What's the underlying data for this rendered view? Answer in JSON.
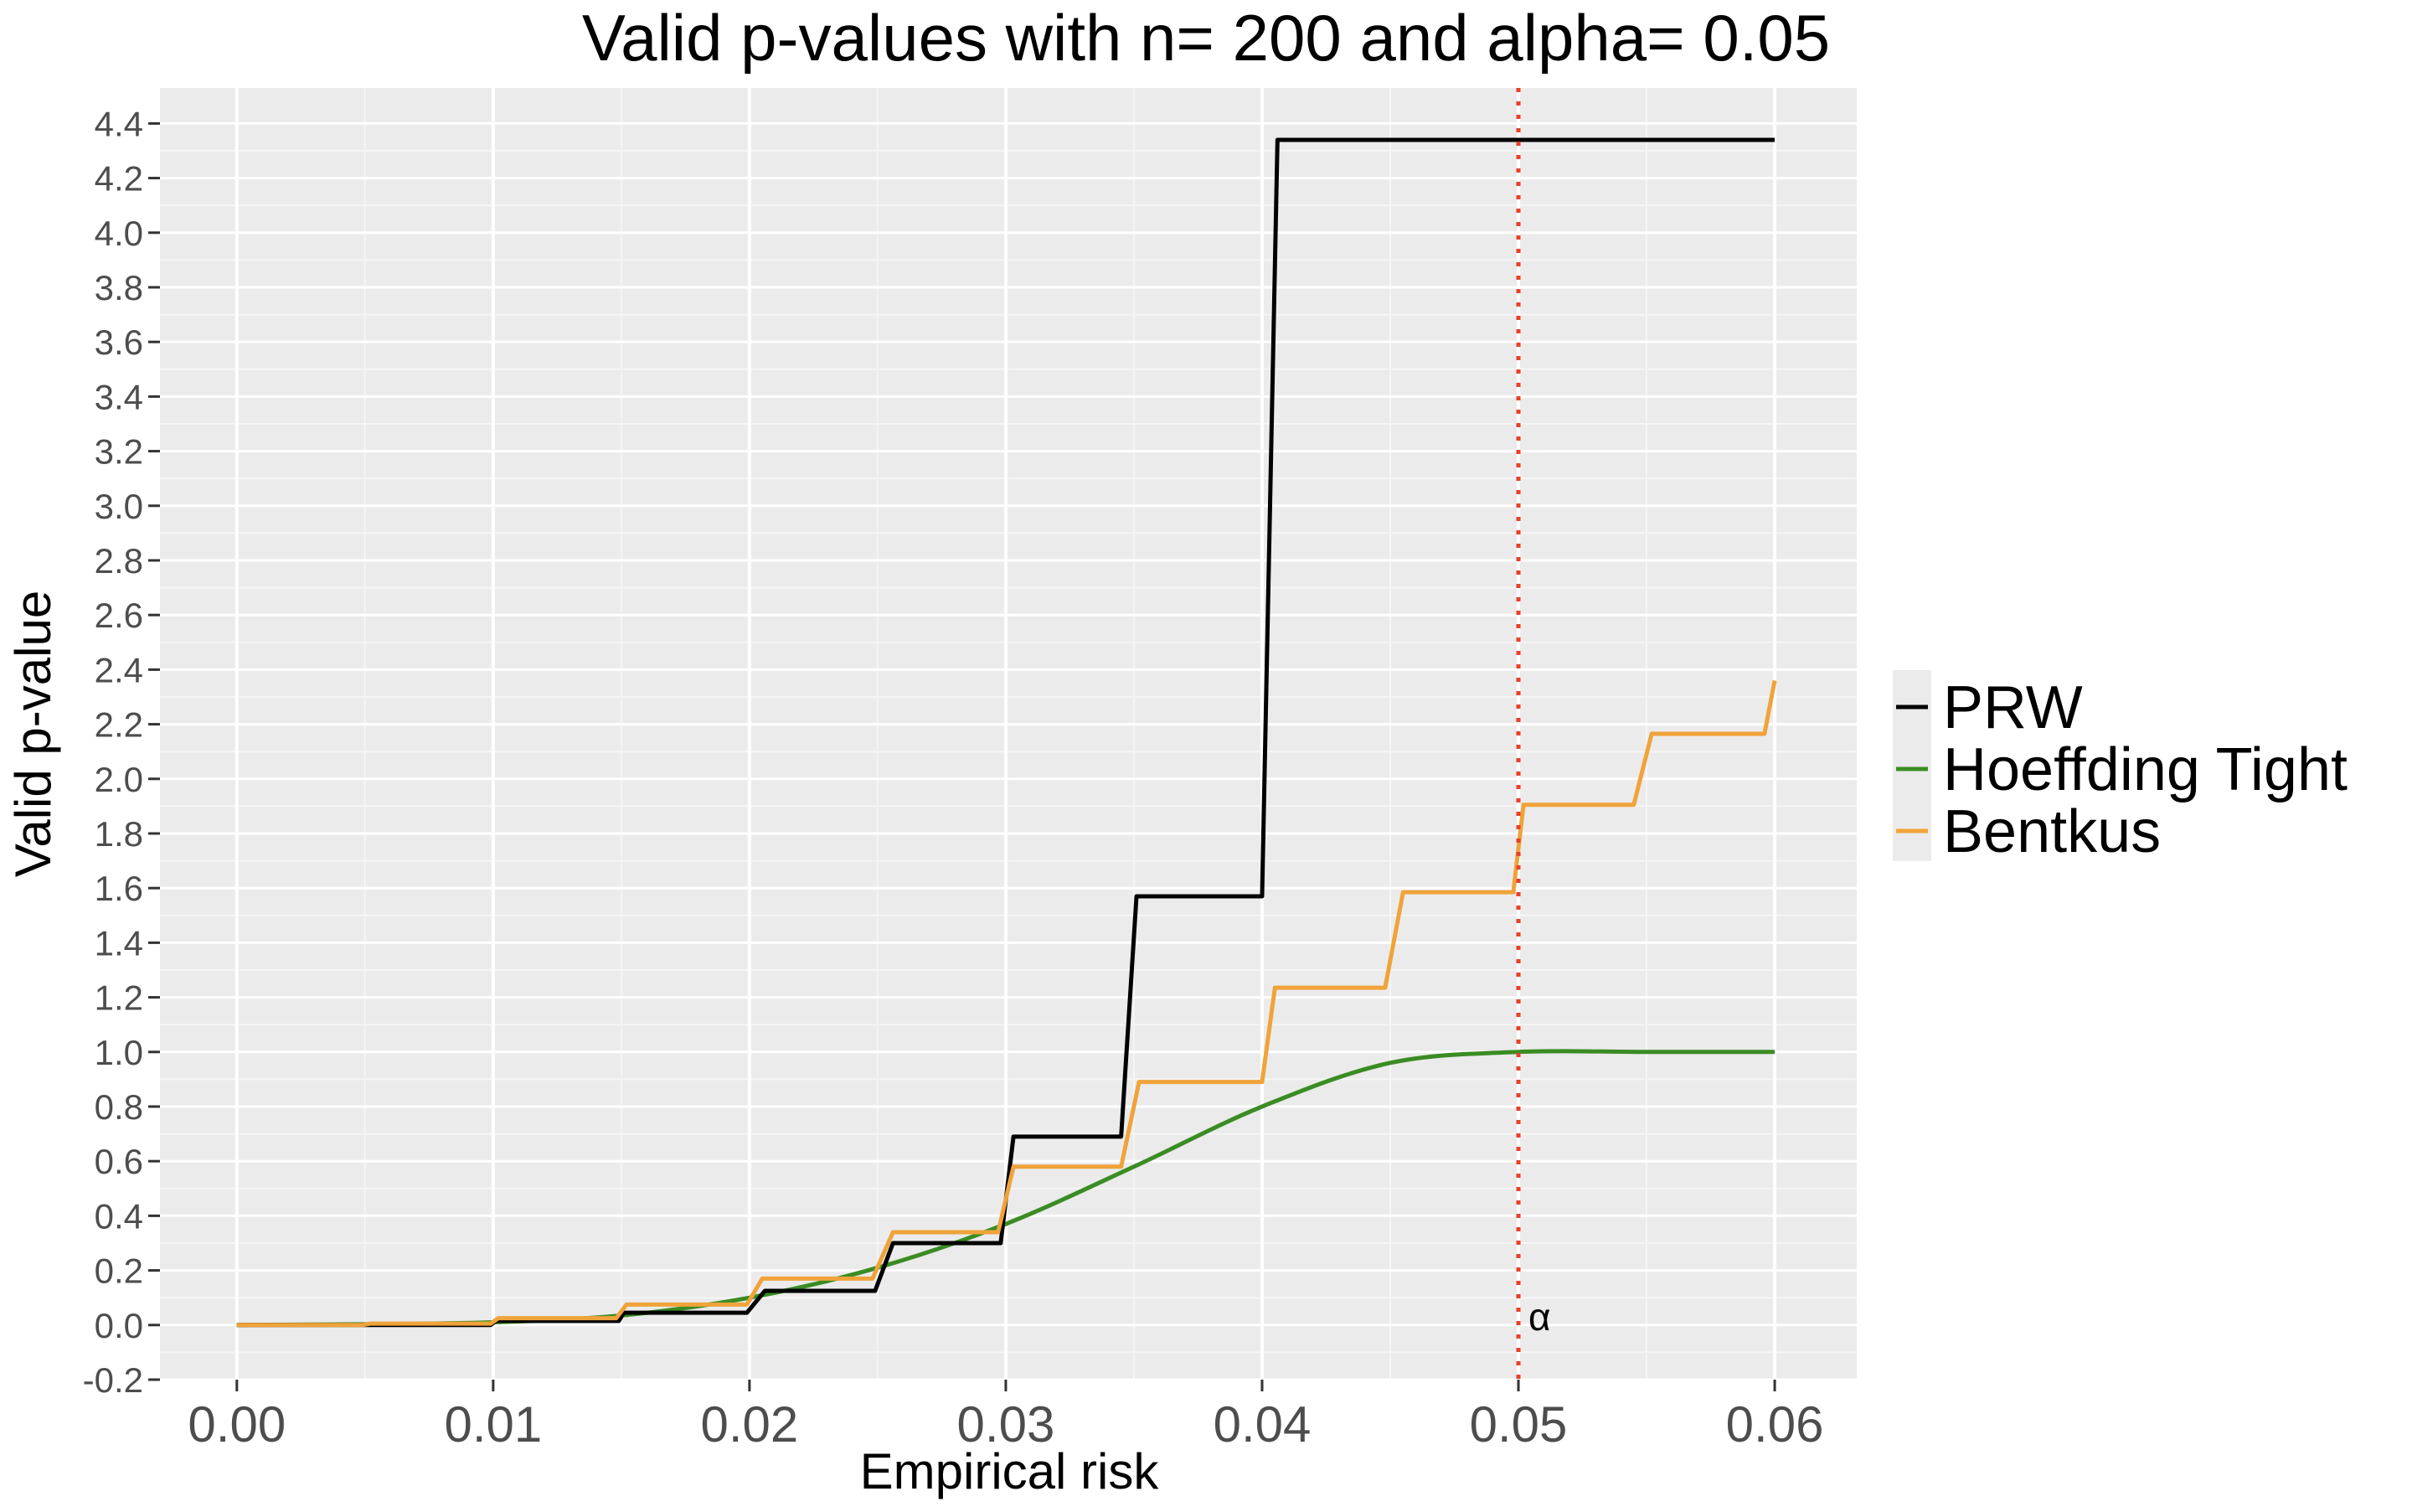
{
  "chart_data": {
    "type": "line",
    "title": "Valid p-values with n= 200  and alpha= 0.05",
    "xlabel": "Empirical risk",
    "ylabel": "Valid p-value",
    "xlim": [
      -0.003,
      0.0632
    ],
    "ylim": [
      -0.2,
      4.53
    ],
    "x_ticks": [
      "0.00",
      "0.01",
      "0.02",
      "0.03",
      "0.04",
      "0.05",
      "0.06"
    ],
    "y_ticks": [
      "-0.2",
      "0.0",
      "0.2",
      "0.4",
      "0.6",
      "0.8",
      "1.0",
      "1.2",
      "1.4",
      "1.6",
      "1.8",
      "2.0",
      "2.2",
      "2.4",
      "2.6",
      "2.8",
      "3.0",
      "3.2",
      "3.4",
      "3.6",
      "3.8",
      "4.0",
      "4.2",
      "4.4"
    ],
    "grid": true,
    "legend_position": "right",
    "vline": {
      "x": 0.05,
      "label": "α",
      "color": "#e8402a",
      "style": "dotted"
    },
    "series": [
      {
        "name": "PRW",
        "color": "#000000",
        "x": [
          0.0,
          0.0099,
          0.0101,
          0.0149,
          0.0151,
          0.0199,
          0.0206,
          0.0249,
          0.0256,
          0.0298,
          0.0303,
          0.0345,
          0.0351,
          0.04,
          0.0406,
          0.06
        ],
        "y": [
          0.0,
          0.0,
          0.015,
          0.015,
          0.045,
          0.045,
          0.125,
          0.125,
          0.3,
          0.3,
          0.69,
          0.69,
          1.57,
          1.57,
          4.34,
          4.34
        ]
      },
      {
        "name": "Hoeffding Tight",
        "color": "#3a8c23",
        "x": [
          0.0,
          0.005,
          0.01,
          0.015,
          0.02,
          0.025,
          0.03,
          0.035,
          0.04,
          0.045,
          0.05,
          0.055,
          0.06
        ],
        "y": [
          0.0,
          0.003,
          0.01,
          0.035,
          0.1,
          0.21,
          0.37,
          0.58,
          0.8,
          0.96,
          1.0,
          1.0,
          1.0
        ]
      },
      {
        "name": "Bentkus",
        "color": "#f0a33a",
        "x": [
          0.0,
          0.0049,
          0.0052,
          0.0099,
          0.0102,
          0.0148,
          0.0152,
          0.0199,
          0.0205,
          0.0248,
          0.0256,
          0.0297,
          0.0303,
          0.0345,
          0.0352,
          0.04,
          0.0405,
          0.0448,
          0.0455,
          0.0498,
          0.0502,
          0.0545,
          0.0552,
          0.0596,
          0.06
        ],
        "y": [
          0.0,
          0.0,
          0.005,
          0.005,
          0.025,
          0.025,
          0.075,
          0.075,
          0.17,
          0.17,
          0.34,
          0.34,
          0.58,
          0.58,
          0.89,
          0.89,
          1.235,
          1.235,
          1.585,
          1.585,
          1.905,
          1.905,
          2.165,
          2.165,
          2.36
        ]
      }
    ]
  }
}
